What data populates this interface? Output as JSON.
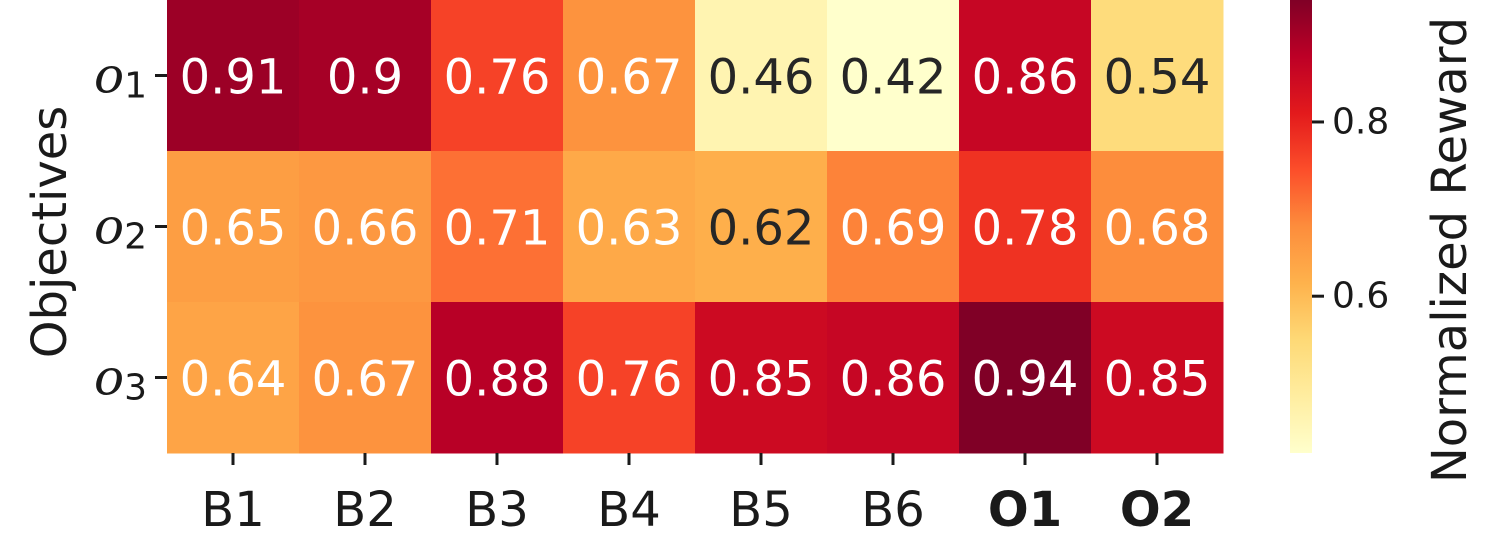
{
  "chart_data": {
    "type": "heatmap",
    "ylabel": "Objectives",
    "colorbar_label": "Normalized Reward",
    "colorbar_ticks": [
      0.6,
      0.8
    ],
    "colorbar_range": [
      0.42,
      0.94
    ],
    "colormap": "YlOrRd",
    "x_categories": [
      "B1",
      "B2",
      "B3",
      "B4",
      "B5",
      "B6",
      "O1",
      "O2"
    ],
    "x_bold": [
      "O1",
      "O2"
    ],
    "y_categories": [
      {
        "base": "o",
        "sub": "1"
      },
      {
        "base": "o",
        "sub": "2"
      },
      {
        "base": "o",
        "sub": "3"
      }
    ],
    "values": [
      [
        0.91,
        0.9,
        0.76,
        0.67,
        0.46,
        0.42,
        0.86,
        0.54
      ],
      [
        0.65,
        0.66,
        0.71,
        0.63,
        0.62,
        0.69,
        0.78,
        0.68
      ],
      [
        0.64,
        0.67,
        0.88,
        0.76,
        0.85,
        0.86,
        0.94,
        0.85
      ]
    ],
    "value_labels": [
      [
        "0.91",
        "0.9",
        "0.76",
        "0.67",
        "0.46",
        "0.42",
        "0.86",
        "0.54"
      ],
      [
        "0.65",
        "0.66",
        "0.71",
        "0.63",
        "0.62",
        "0.69",
        "0.78",
        "0.68"
      ],
      [
        "0.64",
        "0.67",
        "0.88",
        "0.76",
        "0.85",
        "0.86",
        "0.94",
        "0.85"
      ]
    ]
  }
}
